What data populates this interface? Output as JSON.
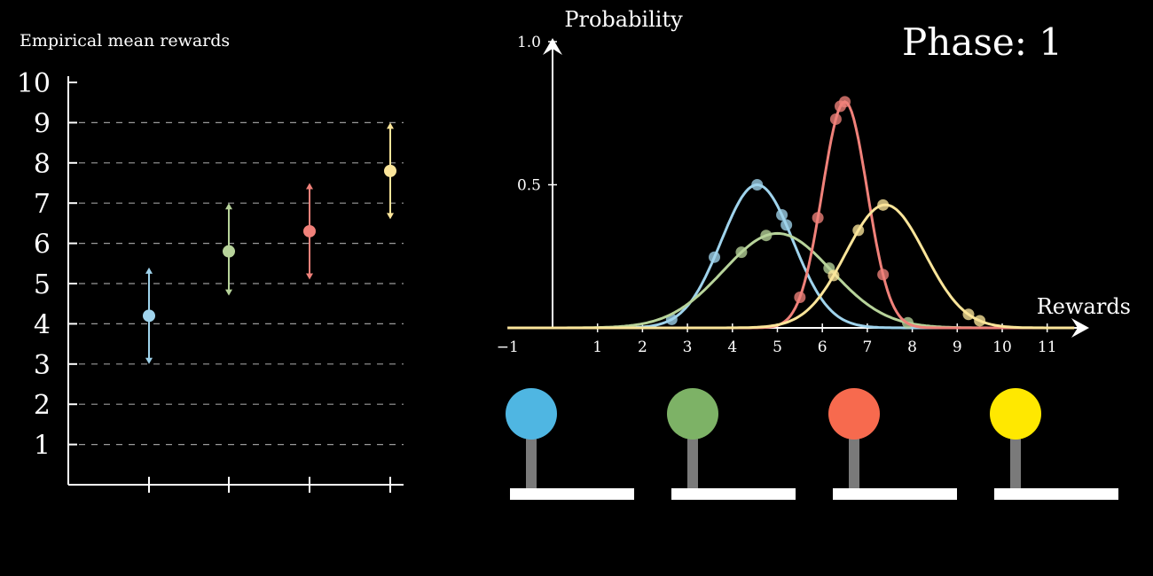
{
  "phase_label": "Phase: 1",
  "colors": {
    "background": "#000000",
    "axis": "#ffffff",
    "grid": "#9a9a9a",
    "blue": "#9fd3ec",
    "green": "#b7d39a",
    "red": "#f0817a",
    "yellow": "#fbe59a",
    "knob_blue": "#4fb6e2",
    "knob_green": "#7db266",
    "knob_red": "#f76a4e",
    "knob_yellow": "#ffe800",
    "lever_stick": "#7a7a7a",
    "lever_base": "#ffffff"
  },
  "chart_data": [
    {
      "type": "scatter",
      "title": "Empirical mean rewards",
      "ylim": [
        0,
        10
      ],
      "yticks": [
        "1",
        "2",
        "3",
        "4",
        "5",
        "6",
        "7",
        "8",
        "9",
        "10"
      ],
      "grid": true,
      "series": [
        {
          "color": "blue",
          "mean": 4.2,
          "upper": 5.4,
          "lower": 3.0
        },
        {
          "color": "green",
          "mean": 5.8,
          "upper": 7.0,
          "lower": 4.7
        },
        {
          "color": "red",
          "mean": 6.3,
          "upper": 7.5,
          "lower": 5.1
        },
        {
          "color": "yellow",
          "mean": 7.8,
          "upper": 9.0,
          "lower": 6.6
        }
      ]
    },
    {
      "type": "line",
      "xlabel": "Rewards",
      "ylabel": "Probability",
      "xlim": [
        -1,
        12
      ],
      "ylim": [
        0,
        1.0
      ],
      "xticks": [
        "−1",
        "1",
        "2",
        "3",
        "4",
        "5",
        "6",
        "7",
        "8",
        "9",
        "10",
        "11"
      ],
      "yticks": [
        "0.5",
        "1.0"
      ],
      "series": [
        {
          "color": "blue",
          "mu": 4.55,
          "sigma": 0.8,
          "peak": 0.5,
          "points": [
            2.65,
            3.6,
            4.55,
            5.1,
            5.2
          ]
        },
        {
          "color": "green",
          "mu": 5.0,
          "sigma": 1.2,
          "peak": 0.33,
          "points": [
            4.2,
            4.75,
            6.15,
            7.9
          ]
        },
        {
          "color": "red",
          "mu": 6.5,
          "sigma": 0.5,
          "peak": 0.79,
          "points": [
            5.5,
            5.9,
            6.3,
            6.4,
            6.5,
            7.35
          ]
        },
        {
          "color": "yellow",
          "mu": 7.4,
          "sigma": 0.88,
          "peak": 0.43,
          "points": [
            6.25,
            6.8,
            7.35,
            9.25,
            9.5
          ]
        }
      ]
    }
  ],
  "levers": [
    {
      "color": "knob_blue"
    },
    {
      "color": "knob_green"
    },
    {
      "color": "knob_red"
    },
    {
      "color": "knob_yellow"
    }
  ]
}
